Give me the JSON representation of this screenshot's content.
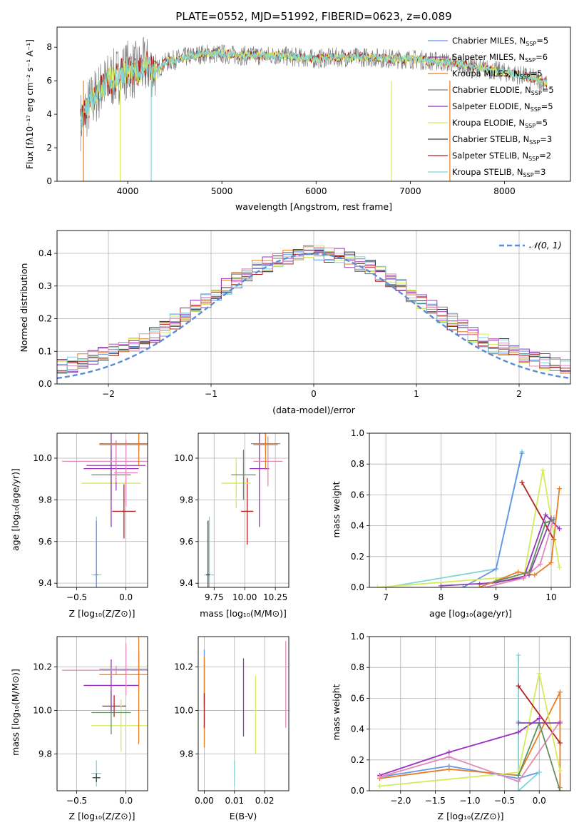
{
  "title": "PLATE=0552, MJD=51992, FIBERID=0623, z=0.089",
  "colors": {
    "Chabrier MILES": "#6495ed",
    "Salpeter MILES": "#8e44ad",
    "Kroupa MILES": "#e67e22",
    "Chabrier ELODIE": "#808080",
    "Salpeter ELODIE": "#9b30c0",
    "Kroupa ELODIE": "#d4ec5a",
    "Chabrier STELIB": "#3a3a3a",
    "Salpeter STELIB": "#b22222",
    "Kroupa STELIB": "#7fd4d8",
    "extra_pink": "#e38ab8",
    "extra_green": "#5f8f5f",
    "normal_curve": "#5b8bd9"
  },
  "chart_data": [
    {
      "id": "spectrum",
      "type": "line",
      "xlabel": "wavelength [Angstrom, rest frame]",
      "ylabel": "Flux [fλ10⁻¹⁷ erg cm⁻² s⁻¹ A⁻¹]",
      "xlim": [
        3250,
        8700
      ],
      "ylim": [
        0,
        9.2
      ],
      "xticks": [
        4000,
        5000,
        6000,
        7000,
        8000
      ],
      "yticks": [
        0,
        2,
        4,
        6,
        8
      ],
      "grid": false,
      "legend_position": "right",
      "continuum": [
        [
          3500,
          3.6
        ],
        [
          3600,
          4.6
        ],
        [
          3700,
          5.4
        ],
        [
          3800,
          6.0
        ],
        [
          3900,
          6.3
        ],
        [
          4000,
          6.7
        ],
        [
          4100,
          6.6
        ],
        [
          4200,
          6.9
        ],
        [
          4300,
          6.6
        ],
        [
          4400,
          7.1
        ],
        [
          4600,
          7.4
        ],
        [
          4800,
          7.6
        ],
        [
          5000,
          7.6
        ],
        [
          5200,
          7.5
        ],
        [
          5400,
          7.5
        ],
        [
          5600,
          7.5
        ],
        [
          5800,
          7.4
        ],
        [
          6000,
          7.3
        ],
        [
          6200,
          7.4
        ],
        [
          6400,
          7.4
        ],
        [
          6600,
          7.4
        ],
        [
          6800,
          7.3
        ],
        [
          7000,
          7.3
        ],
        [
          7200,
          7.2
        ],
        [
          7400,
          7.1
        ],
        [
          7600,
          6.9
        ],
        [
          7800,
          6.7
        ],
        [
          8000,
          6.5
        ],
        [
          8200,
          6.3
        ],
        [
          8450,
          5.9
        ]
      ],
      "legend": [
        {
          "name": "Chabrier MILES, N",
          "sub": "SSP",
          "n": "=5",
          "color": "#6495ed"
        },
        {
          "name": "Salpeter MILES, N",
          "sub": "SSP",
          "n": "=6",
          "color": "#8e44ad"
        },
        {
          "name": "Kroupa MILES, N",
          "sub": "SSP",
          "n": "=5",
          "color": "#e67e22"
        },
        {
          "name": "Chabrier ELODIE, N",
          "sub": "SSP",
          "n": "=5",
          "color": "#808080"
        },
        {
          "name": "Salpeter ELODIE, N",
          "sub": "SSP",
          "n": "=5",
          "color": "#9b30c0"
        },
        {
          "name": "Kroupa ELODIE, N",
          "sub": "SSP",
          "n": "=5",
          "color": "#d4ec5a"
        },
        {
          "name": "Chabrier STELIB, N",
          "sub": "SSP",
          "n": "=3",
          "color": "#3a3a3a"
        },
        {
          "name": "Salpeter STELIB, N",
          "sub": "SSP",
          "n": "=2",
          "color": "#b22222"
        },
        {
          "name": "Kroupa STELIB, N",
          "sub": "SSP",
          "n": "=3",
          "color": "#7fd4d8"
        }
      ]
    },
    {
      "id": "residuals",
      "type": "histogram",
      "xlabel": "(data-model)/error",
      "ylabel": "Normed distribution",
      "xlim": [
        -2.5,
        2.5
      ],
      "ylim": [
        0,
        0.47
      ],
      "xticks": [
        -2,
        -1,
        0,
        1,
        2
      ],
      "yticks": [
        0.0,
        0.1,
        0.2,
        0.3,
        0.4
      ],
      "grid": true,
      "legend": [
        {
          "name": "𝒩(0, 1)",
          "style": "dashed",
          "color": "#5b8bd9"
        }
      ],
      "legend_position": "top-right"
    },
    {
      "id": "age_vs_Z",
      "type": "errorbar",
      "xlabel": "Z [log₁₀(Z/Z⊙)]",
      "ylabel": "age  [log₁₀(age/yr)]",
      "xlim": [
        -0.7,
        0.22
      ],
      "ylim": [
        9.38,
        10.12
      ],
      "xticks": [
        -0.5,
        0.0
      ],
      "yticks": [
        9.4,
        9.6,
        9.8,
        10.0
      ],
      "grid": true,
      "points": [
        {
          "x": -0.3,
          "xerr": 0.05,
          "y": 9.44,
          "yerr": 0.28,
          "color": "#7fd4d8"
        },
        {
          "x": -0.3,
          "xerr": 0.02,
          "y": 9.44,
          "yerr": 0.26,
          "color": "#6495ed"
        },
        {
          "x": -0.02,
          "xerr": 0.12,
          "y": 9.745,
          "yerr": 0.13,
          "color": "#b22222"
        },
        {
          "x": -0.15,
          "xerr": 0.3,
          "y": 9.88,
          "yerr": 0.1,
          "color": "#d4ec5a"
        },
        {
          "x": -0.15,
          "xerr": 0.2,
          "y": 9.92,
          "yerr": 0.12,
          "color": "#5f8f5f"
        },
        {
          "x": -0.15,
          "xerr": 0.28,
          "y": 9.95,
          "yerr": 0.28,
          "color": "#9b30c0"
        },
        {
          "x": -0.1,
          "xerr": 0.3,
          "y": 9.965,
          "yerr": 0.12,
          "color": "#8e44ad"
        },
        {
          "x": 0.0,
          "xerr": 0.12,
          "y": 9.93,
          "yerr": 0.16,
          "color": "#e38ab8"
        },
        {
          "x": -0.1,
          "xerr": 0.55,
          "y": 9.985,
          "yerr": 0.1,
          "color": "#e38ab8"
        },
        {
          "x": 0.13,
          "xerr": 0.4,
          "y": 10.07,
          "yerr": 0.04,
          "color": "#6495ed"
        },
        {
          "x": 0.13,
          "xerr": 0.4,
          "y": 10.065,
          "yerr": 0.1,
          "color": "#e67e22"
        }
      ]
    },
    {
      "id": "age_vs_mass",
      "type": "errorbar",
      "xlabel": "mass [log₁₀(M/M⊙)]",
      "ylabel": "",
      "xlim": [
        9.62,
        10.36
      ],
      "ylim": [
        9.38,
        10.12
      ],
      "xticks": [
        9.75,
        10.0,
        10.25
      ],
      "yticks": [
        9.4,
        9.6,
        9.8,
        10.0
      ],
      "grid": true,
      "points": [
        {
          "x": 9.71,
          "xerr": 0.04,
          "y": 9.44,
          "yerr": 0.28,
          "color": "#7fd4d8"
        },
        {
          "x": 9.7,
          "xerr": 0.015,
          "y": 9.44,
          "yerr": 0.26,
          "color": "#3a3a3a"
        },
        {
          "x": 10.02,
          "xerr": 0.05,
          "y": 9.745,
          "yerr": 0.16,
          "color": "#b22222"
        },
        {
          "x": 9.93,
          "xerr": 0.12,
          "y": 9.88,
          "yerr": 0.12,
          "color": "#d4ec5a"
        },
        {
          "x": 9.99,
          "xerr": 0.1,
          "y": 9.92,
          "yerr": 0.12,
          "color": "#5f8f5f"
        },
        {
          "x": 10.12,
          "xerr": 0.08,
          "y": 9.95,
          "yerr": 0.28,
          "color": "#9b30c0"
        },
        {
          "x": 10.19,
          "xerr": 0.12,
          "y": 9.985,
          "yerr": 0.12,
          "color": "#e38ab8"
        },
        {
          "x": 10.17,
          "xerr": 0.12,
          "y": 10.07,
          "yerr": 0.05,
          "color": "#6495ed"
        },
        {
          "x": 10.17,
          "xerr": 0.1,
          "y": 10.065,
          "yerr": 0.12,
          "color": "#e67e22"
        }
      ]
    },
    {
      "id": "weight_vs_age",
      "type": "line",
      "xlabel": "age  [log₁₀(age/yr)]",
      "ylabel": "mass weight",
      "xlim": [
        6.7,
        10.35
      ],
      "ylim": [
        0,
        1.0
      ],
      "xticks": [
        7,
        8,
        9,
        10
      ],
      "yticks": [
        0.0,
        0.2,
        0.4,
        0.6,
        0.8,
        1.0
      ],
      "grid": true,
      "series": [
        {
          "color": "#7fd4d8",
          "x": [
            7.0,
            9.0,
            9.47
          ],
          "y": [
            0.0,
            0.12,
            0.88
          ]
        },
        {
          "color": "#6495ed",
          "x": [
            8.4,
            9.0,
            9.47
          ],
          "y": [
            0.0,
            0.12,
            0.87
          ]
        },
        {
          "color": "#d4ec5a",
          "x": [
            6.85,
            9.0,
            9.5,
            9.85,
            10.15
          ],
          "y": [
            0.0,
            0.06,
            0.06,
            0.76,
            0.13
          ]
        },
        {
          "color": "#b22222",
          "x": [
            9.47,
            10.05
          ],
          "y": [
            0.68,
            0.31
          ]
        },
        {
          "color": "#9b30c0",
          "x": [
            8.7,
            9.5,
            9.9,
            10.15
          ],
          "y": [
            0.02,
            0.06,
            0.47,
            0.38
          ]
        },
        {
          "color": "#8e44ad",
          "x": [
            8.0,
            9.0,
            9.6,
            10.0
          ],
          "y": [
            0.01,
            0.03,
            0.08,
            0.45
          ]
        },
        {
          "color": "#e67e22",
          "x": [
            8.7,
            9.4,
            9.7,
            10.0,
            10.15
          ],
          "y": [
            0.0,
            0.1,
            0.08,
            0.16,
            0.64
          ]
        },
        {
          "color": "#e38ab8",
          "x": [
            8.8,
            9.5,
            9.8,
            10.05
          ],
          "y": [
            0.0,
            0.06,
            0.15,
            0.45
          ]
        },
        {
          "color": "#5f8f5f",
          "x": [
            9.0,
            9.6,
            9.9,
            10.05
          ],
          "y": [
            0.04,
            0.1,
            0.42,
            0.44
          ]
        }
      ]
    },
    {
      "id": "mass_vs_Z",
      "type": "errorbar",
      "xlabel": "Z [log₁₀(Z/Z⊙)]",
      "ylabel": "mass [log₁₀(M/M⊙)]",
      "xlim": [
        -0.7,
        0.22
      ],
      "ylim": [
        9.63,
        10.34
      ],
      "xticks": [
        -0.5,
        0.0
      ],
      "yticks": [
        9.8,
        10.0,
        10.2
      ],
      "grid": true,
      "points": [
        {
          "x": -0.3,
          "xerr": 0.05,
          "y": 9.71,
          "yerr": 0.06,
          "color": "#7fd4d8"
        },
        {
          "x": -0.3,
          "xerr": 0.04,
          "y": 9.69,
          "yerr": 0.02,
          "color": "#3a3a3a"
        },
        {
          "x": -0.12,
          "xerr": 0.12,
          "y": 10.02,
          "yerr": 0.05,
          "color": "#b22222"
        },
        {
          "x": -0.05,
          "xerr": 0.3,
          "y": 9.93,
          "yerr": 0.12,
          "color": "#d4ec5a"
        },
        {
          "x": -0.15,
          "xerr": 0.2,
          "y": 9.99,
          "yerr": 0.1,
          "color": "#5f8f5f"
        },
        {
          "x": -0.15,
          "xerr": 0.28,
          "y": 10.115,
          "yerr": 0.12,
          "color": "#9b30c0"
        },
        {
          "x": 0.0,
          "xerr": 0.02,
          "y": 10.19,
          "yerr": 0.12,
          "color": "#e38ab8"
        },
        {
          "x": -0.1,
          "xerr": 0.55,
          "y": 10.185,
          "yerr": 0.02,
          "color": "#e38ab8"
        },
        {
          "x": 0.13,
          "xerr": 0.4,
          "y": 10.19,
          "yerr": 0.08,
          "color": "#6495ed"
        },
        {
          "x": 0.13,
          "xerr": 0.4,
          "y": 10.165,
          "yerr": 0.32,
          "color": "#e67e22"
        }
      ]
    },
    {
      "id": "mass_vs_ebv",
      "type": "errorbar",
      "xlabel": "E(B-V)",
      "ylabel": "",
      "xlim": [
        -0.002,
        0.028
      ],
      "ylim": [
        9.63,
        10.34
      ],
      "xticks": [
        0.0,
        0.01,
        0.02
      ],
      "yticks": [
        9.8,
        10.0,
        10.2
      ],
      "grid": true,
      "points": [
        {
          "x": 0.0,
          "xerr": 0,
          "y": 10.15,
          "yerr": 0.13,
          "color": "#6495ed"
        },
        {
          "x": 0.0,
          "xerr": 0,
          "y": 10.04,
          "yerr": 0.21,
          "color": "#e67e22"
        },
        {
          "x": 0.0,
          "xerr": 0,
          "y": 10.0,
          "yerr": 0.08,
          "color": "#b22222"
        },
        {
          "x": 0.01,
          "xerr": 0,
          "y": 9.71,
          "yerr": 0.06,
          "color": "#7fd4d8"
        },
        {
          "x": 0.013,
          "xerr": 0,
          "y": 10.06,
          "yerr": 0.18,
          "color": "#9b30c0"
        },
        {
          "x": 0.017,
          "xerr": 0,
          "y": 9.98,
          "yerr": 0.18,
          "color": "#d4ec5a"
        },
        {
          "x": 0.027,
          "xerr": 0,
          "y": 10.12,
          "yerr": 0.2,
          "color": "#e38ab8"
        }
      ]
    },
    {
      "id": "weight_vs_Z",
      "type": "line",
      "xlabel": "Z [log₁₀(Z/Z⊙)]",
      "ylabel": "mass weight",
      "xlim": [
        -2.45,
        0.45
      ],
      "ylim": [
        0,
        1.0
      ],
      "xticks": [
        -2.0,
        -1.5,
        -1.0,
        -0.5,
        0.0
      ],
      "yticks": [
        0.0,
        0.2,
        0.4,
        0.6,
        0.8,
        1.0
      ],
      "grid": true,
      "series": [
        {
          "color": "#6495ed",
          "x": [
            -2.3,
            -1.3,
            -0.3,
            0.0
          ],
          "y": [
            0.09,
            0.16,
            0.08,
            0.12
          ]
        },
        {
          "color": "#7fd4d8",
          "x": [
            -0.3,
            -0.3,
            -0.3,
            0.0
          ],
          "y": [
            0.88,
            0.45,
            0.0,
            0.12
          ]
        },
        {
          "color": "#9b30c0",
          "x": [
            -2.3,
            -1.3,
            -0.3,
            0.0
          ],
          "y": [
            0.1,
            0.25,
            0.38,
            0.47
          ]
        },
        {
          "color": "#e67e22",
          "x": [
            -2.3,
            -1.3,
            -0.3,
            0.3,
            0.3
          ],
          "y": [
            0.08,
            0.14,
            0.1,
            0.64,
            0.02
          ]
        },
        {
          "color": "#d4ec5a",
          "x": [
            -2.3,
            -0.3,
            0.0,
            0.3
          ],
          "y": [
            0.03,
            0.12,
            0.76,
            0.13
          ]
        },
        {
          "color": "#b22222",
          "x": [
            -0.3,
            0.3
          ],
          "y": [
            0.68,
            0.31
          ]
        },
        {
          "color": "#e38ab8",
          "x": [
            -2.3,
            -1.3,
            -0.3,
            0.3
          ],
          "y": [
            0.09,
            0.22,
            0.06,
            0.45
          ]
        },
        {
          "color": "#5f8f5f",
          "x": [
            -0.3,
            0.0,
            0.3
          ],
          "y": [
            0.1,
            0.44,
            0.0
          ]
        },
        {
          "color": "#8e44ad",
          "x": [
            -0.3,
            0.3
          ],
          "y": [
            0.44,
            0.44
          ]
        }
      ]
    }
  ]
}
